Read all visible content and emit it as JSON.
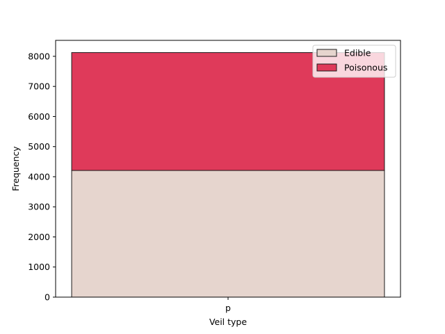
{
  "chart_data": {
    "type": "bar",
    "stacked": true,
    "categories": [
      "p"
    ],
    "series": [
      {
        "name": "Edible",
        "values": [
          4208
        ],
        "color": "#e6d5ce"
      },
      {
        "name": "Poisonous",
        "values": [
          3916
        ],
        "color": "#df3a5a"
      }
    ],
    "xlabel": "Veil type",
    "ylabel": "Frequency",
    "ylim": [
      0,
      8530
    ],
    "yticks": [
      0,
      1000,
      2000,
      3000,
      4000,
      5000,
      6000,
      7000,
      8000
    ],
    "grid": false,
    "legend_position": "top-right"
  }
}
